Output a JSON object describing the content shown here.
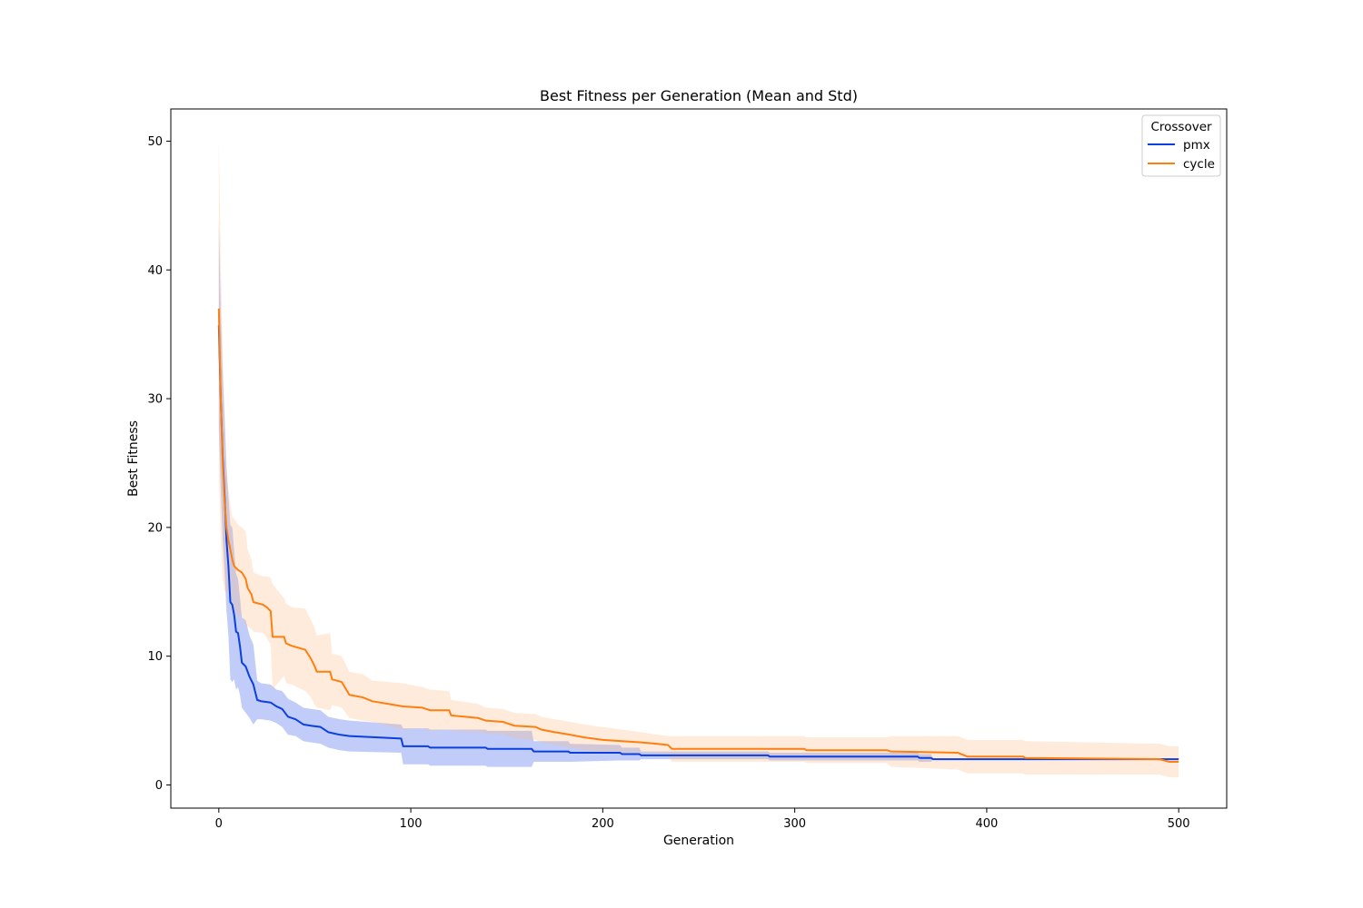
{
  "chart_data": {
    "type": "line",
    "title": "Best Fitness per Generation (Mean and Std)",
    "xlabel": "Generation",
    "ylabel": "Best Fitness",
    "xlim": [
      -25,
      525
    ],
    "ylim": [
      -1.8,
      52.5
    ],
    "xticks": [
      0,
      100,
      200,
      300,
      400,
      500
    ],
    "yticks": [
      0,
      10,
      20,
      30,
      40,
      50
    ],
    "grid": false,
    "legend": {
      "title": "Crossover",
      "placement": "top-right"
    },
    "series": [
      {
        "name": "pmx",
        "color": "#0b3fe0",
        "band_color": "#1f4de6",
        "points": [
          [
            0,
            35.7
          ],
          [
            1,
            30.0
          ],
          [
            2,
            25.5
          ],
          [
            3,
            22.5
          ],
          [
            4,
            19.0
          ],
          [
            5,
            17.0
          ],
          [
            6,
            14.2
          ],
          [
            7,
            14.0
          ],
          [
            8,
            13.2
          ],
          [
            9,
            11.9
          ],
          [
            10,
            11.8
          ],
          [
            11,
            10.8
          ],
          [
            12,
            9.5
          ],
          [
            14,
            9.2
          ],
          [
            16,
            8.4
          ],
          [
            18,
            7.8
          ],
          [
            20,
            6.6
          ],
          [
            22,
            6.5
          ],
          [
            27,
            6.4
          ],
          [
            30,
            6.1
          ],
          [
            33,
            5.9
          ],
          [
            36,
            5.3
          ],
          [
            40,
            5.1
          ],
          [
            44,
            4.7
          ],
          [
            48,
            4.6
          ],
          [
            53,
            4.5
          ],
          [
            57,
            4.1
          ],
          [
            63,
            3.9
          ],
          [
            68,
            3.8
          ],
          [
            95,
            3.6
          ],
          [
            96,
            3.0
          ],
          [
            109,
            3.0
          ],
          [
            110,
            2.9
          ],
          [
            139,
            2.9
          ],
          [
            140,
            2.8
          ],
          [
            163,
            2.8
          ],
          [
            164,
            2.6
          ],
          [
            182,
            2.6
          ],
          [
            183,
            2.5
          ],
          [
            209,
            2.5
          ],
          [
            210,
            2.4
          ],
          [
            219,
            2.4
          ],
          [
            220,
            2.3
          ],
          [
            286,
            2.3
          ],
          [
            287,
            2.2
          ],
          [
            364,
            2.2
          ],
          [
            365,
            2.1
          ],
          [
            371,
            2.1
          ],
          [
            372,
            2.0
          ],
          [
            500,
            2.0
          ]
        ],
        "std": [
          [
            0,
            8.0
          ],
          [
            1,
            7.0
          ],
          [
            2,
            6.5
          ],
          [
            3,
            6.0
          ],
          [
            4,
            5.5
          ],
          [
            5,
            5.4
          ],
          [
            6,
            6.0
          ],
          [
            7,
            6.0
          ],
          [
            8,
            5.0
          ],
          [
            9,
            4.5
          ],
          [
            10,
            4.2
          ],
          [
            11,
            3.8
          ],
          [
            12,
            3.5
          ],
          [
            14,
            3.6
          ],
          [
            16,
            3.2
          ],
          [
            18,
            3.1
          ],
          [
            20,
            1.5
          ],
          [
            22,
            1.4
          ],
          [
            27,
            1.4
          ],
          [
            30,
            1.3
          ],
          [
            33,
            1.4
          ],
          [
            36,
            1.4
          ],
          [
            40,
            1.3
          ],
          [
            44,
            1.3
          ],
          [
            48,
            1.3
          ],
          [
            53,
            1.3
          ],
          [
            57,
            1.2
          ],
          [
            63,
            1.2
          ],
          [
            68,
            1.2
          ],
          [
            95,
            1.1
          ],
          [
            96,
            1.4
          ],
          [
            109,
            1.4
          ],
          [
            110,
            1.4
          ],
          [
            139,
            1.4
          ],
          [
            140,
            1.4
          ],
          [
            163,
            1.4
          ],
          [
            164,
            0.8
          ],
          [
            182,
            0.8
          ],
          [
            183,
            0.7
          ],
          [
            209,
            0.6
          ],
          [
            210,
            0.5
          ],
          [
            219,
            0.5
          ],
          [
            220,
            0.3
          ],
          [
            286,
            0.3
          ],
          [
            287,
            0.3
          ],
          [
            364,
            0.3
          ],
          [
            365,
            0.3
          ],
          [
            371,
            0.3
          ],
          [
            372,
            0.0
          ],
          [
            500,
            0.0
          ]
        ]
      },
      {
        "name": "cycle",
        "color": "#ff7f0e",
        "band_color": "#ffb880",
        "points": [
          [
            0,
            37.0
          ],
          [
            1,
            30.0
          ],
          [
            2,
            25.0
          ],
          [
            3,
            22.0
          ],
          [
            4,
            20.0
          ],
          [
            5,
            19.0
          ],
          [
            6,
            18.3
          ],
          [
            7,
            17.5
          ],
          [
            8,
            17.0
          ],
          [
            10,
            16.7
          ],
          [
            12,
            16.5
          ],
          [
            14,
            16.0
          ],
          [
            15,
            15.3
          ],
          [
            17,
            14.8
          ],
          [
            18,
            14.2
          ],
          [
            23,
            14.0
          ],
          [
            25,
            13.8
          ],
          [
            27,
            13.5
          ],
          [
            28,
            11.5
          ],
          [
            34,
            11.5
          ],
          [
            35,
            11.0
          ],
          [
            38,
            10.8
          ],
          [
            45,
            10.5
          ],
          [
            48,
            9.8
          ],
          [
            50,
            9.2
          ],
          [
            51,
            8.8
          ],
          [
            58,
            8.8
          ],
          [
            59,
            8.2
          ],
          [
            64,
            8.0
          ],
          [
            66,
            7.5
          ],
          [
            68,
            7.0
          ],
          [
            75,
            6.8
          ],
          [
            80,
            6.5
          ],
          [
            88,
            6.3
          ],
          [
            96,
            6.1
          ],
          [
            106,
            6.0
          ],
          [
            110,
            5.8
          ],
          [
            120,
            5.8
          ],
          [
            121,
            5.4
          ],
          [
            135,
            5.2
          ],
          [
            139,
            5.0
          ],
          [
            148,
            4.9
          ],
          [
            150,
            4.8
          ],
          [
            154,
            4.6
          ],
          [
            165,
            4.5
          ],
          [
            168,
            4.3
          ],
          [
            175,
            4.1
          ],
          [
            183,
            3.9
          ],
          [
            190,
            3.7
          ],
          [
            200,
            3.5
          ],
          [
            210,
            3.4
          ],
          [
            220,
            3.3
          ],
          [
            228,
            3.2
          ],
          [
            234,
            3.1
          ],
          [
            236,
            2.8
          ],
          [
            305,
            2.8
          ],
          [
            306,
            2.7
          ],
          [
            348,
            2.7
          ],
          [
            350,
            2.6
          ],
          [
            385,
            2.5
          ],
          [
            390,
            2.2
          ],
          [
            419,
            2.2
          ],
          [
            420,
            2.1
          ],
          [
            490,
            2.0
          ],
          [
            495,
            1.8
          ],
          [
            500,
            1.8
          ]
        ],
        "std": [
          [
            0,
            13.0
          ],
          [
            1,
            11.0
          ],
          [
            2,
            9.0
          ],
          [
            3,
            7.0
          ],
          [
            4,
            5.0
          ],
          [
            5,
            4.0
          ],
          [
            6,
            3.5
          ],
          [
            7,
            3.3
          ],
          [
            8,
            3.7
          ],
          [
            10,
            3.5
          ],
          [
            12,
            3.5
          ],
          [
            14,
            3.7
          ],
          [
            15,
            3.0
          ],
          [
            17,
            2.7
          ],
          [
            18,
            2.3
          ],
          [
            23,
            2.2
          ],
          [
            25,
            2.4
          ],
          [
            27,
            2.6
          ],
          [
            28,
            4.1
          ],
          [
            34,
            3.0
          ],
          [
            35,
            3.1
          ],
          [
            38,
            3.0
          ],
          [
            45,
            3.2
          ],
          [
            48,
            3.0
          ],
          [
            50,
            3.0
          ],
          [
            51,
            2.8
          ],
          [
            58,
            3.0
          ],
          [
            59,
            2.0
          ],
          [
            64,
            2.0
          ],
          [
            66,
            1.9
          ],
          [
            68,
            1.8
          ],
          [
            75,
            1.8
          ],
          [
            80,
            1.6
          ],
          [
            88,
            1.7
          ],
          [
            96,
            1.8
          ],
          [
            106,
            1.6
          ],
          [
            110,
            1.6
          ],
          [
            120,
            1.5
          ],
          [
            121,
            1.2
          ],
          [
            135,
            1.1
          ],
          [
            139,
            1.0
          ],
          [
            148,
            1.0
          ],
          [
            150,
            1.0
          ],
          [
            154,
            1.0
          ],
          [
            165,
            1.0
          ],
          [
            168,
            1.0
          ],
          [
            175,
            1.0
          ],
          [
            183,
            1.0
          ],
          [
            190,
            1.0
          ],
          [
            200,
            1.0
          ],
          [
            210,
            0.9
          ],
          [
            220,
            0.8
          ],
          [
            228,
            0.7
          ],
          [
            234,
            0.7
          ],
          [
            236,
            1.0
          ],
          [
            305,
            1.0
          ],
          [
            306,
            1.0
          ],
          [
            348,
            1.0
          ],
          [
            350,
            1.2
          ],
          [
            385,
            1.3
          ],
          [
            390,
            1.3
          ],
          [
            419,
            1.3
          ],
          [
            420,
            1.3
          ],
          [
            490,
            1.2
          ],
          [
            495,
            1.2
          ],
          [
            500,
            1.2
          ]
        ]
      }
    ]
  }
}
